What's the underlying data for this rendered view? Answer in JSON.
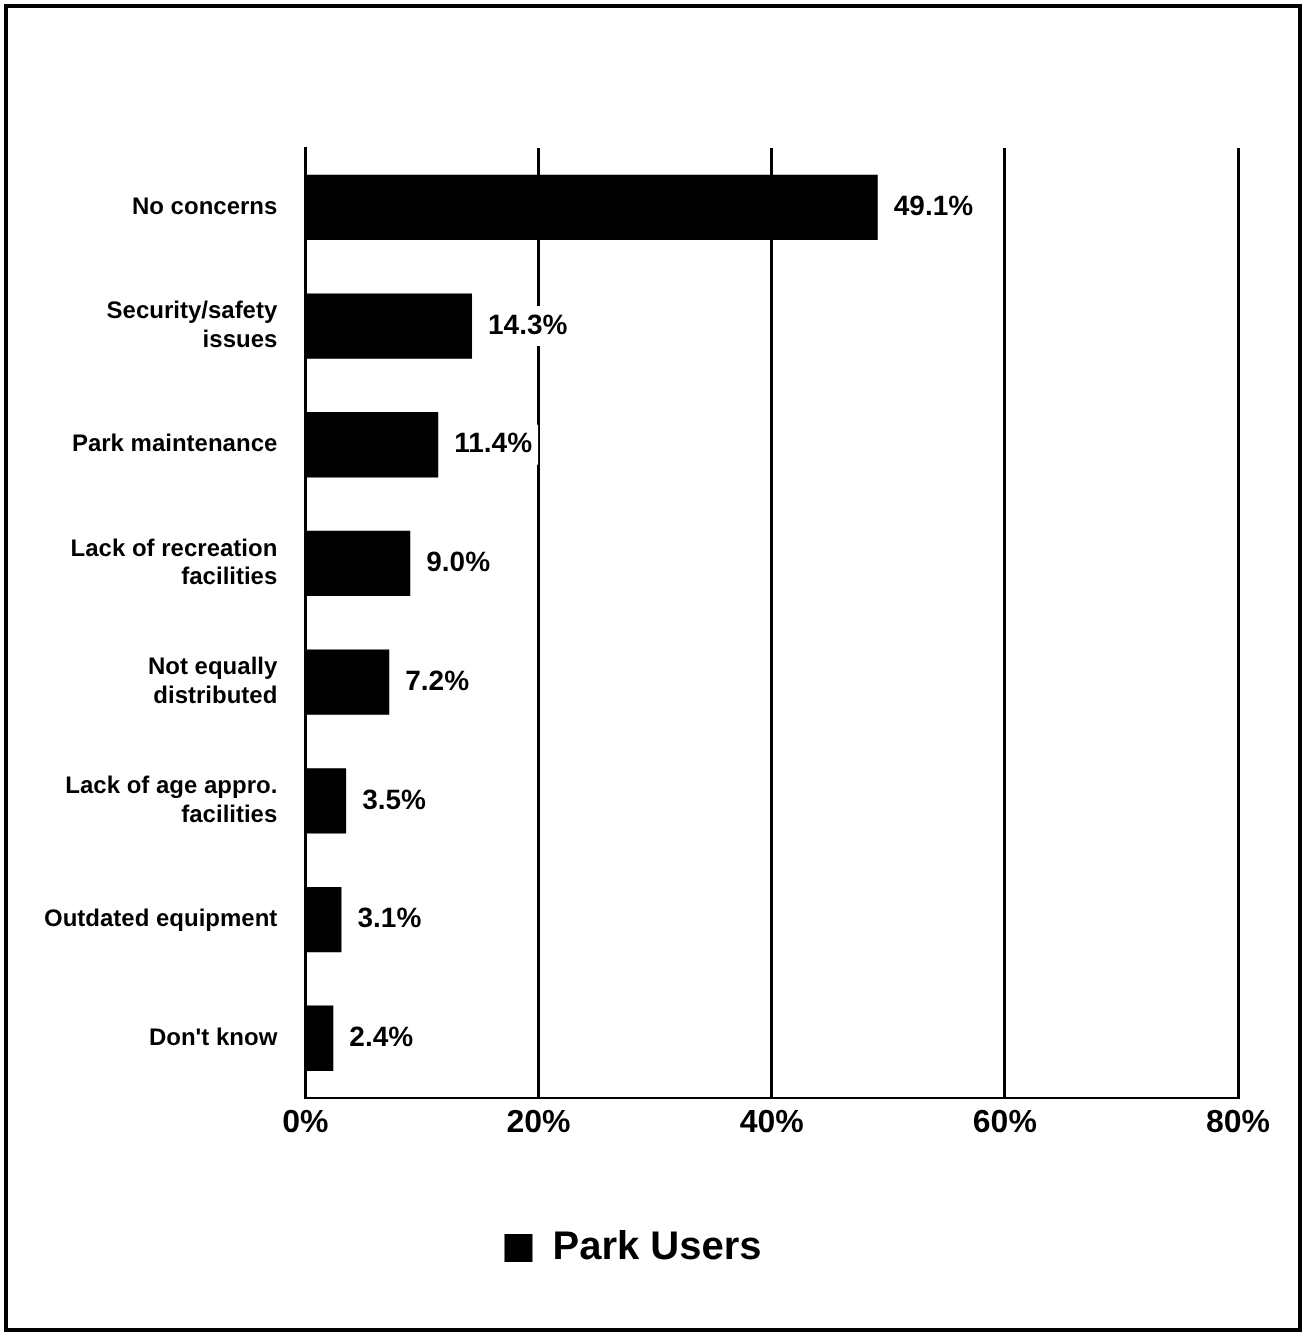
{
  "chart_data": {
    "type": "bar",
    "orientation": "horizontal",
    "categories": [
      "No concerns",
      "Security/safety issues",
      "Park maintenance",
      "Lack of recreation facilities",
      "Not equally distributed",
      "Lack of age appro. facilities",
      "Outdated equipment",
      "Don't know"
    ],
    "series": [
      {
        "name": "Park Users",
        "color": "#000000",
        "values": [
          49.1,
          14.3,
          11.4,
          9.0,
          7.2,
          3.5,
          3.1,
          2.4
        ],
        "value_labels": [
          "49.1%",
          "14.3%",
          "11.4%",
          "9.0%",
          "7.2%",
          "3.5%",
          "3.1%",
          "2.4%"
        ]
      }
    ],
    "xlim": [
      0,
      80
    ],
    "xticks": [
      {
        "value": 0,
        "label": "0%"
      },
      {
        "value": 20,
        "label": "20%"
      },
      {
        "value": 40,
        "label": "40%"
      },
      {
        "value": 60,
        "label": "60%"
      },
      {
        "value": 80,
        "label": "80%"
      }
    ],
    "grid": "x",
    "legend": "bottom"
  }
}
